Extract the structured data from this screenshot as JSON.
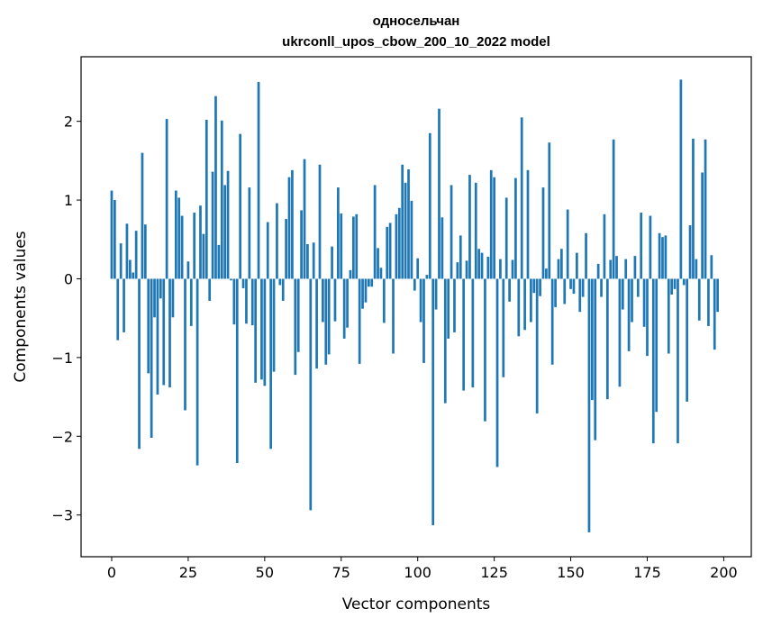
{
  "chart_data": {
    "type": "bar",
    "title": "односельчан",
    "subtitle": "ukrconll_upos_cbow_200_10_2022 model",
    "xlabel": "Vector components",
    "ylabel": "Components values",
    "xlim": [
      -10,
      209
    ],
    "ylim": [
      -3.53,
      2.82
    ],
    "xticks": [
      0,
      25,
      50,
      75,
      100,
      125,
      150,
      175,
      200
    ],
    "yticks": [
      2,
      1,
      0,
      -1,
      -2,
      -3
    ],
    "ytick_labels": [
      "2",
      "1",
      "0",
      "−1",
      "−2",
      "−3"
    ],
    "bar_color": "#1f77b4",
    "grid": false,
    "legend": "none",
    "values": [
      1.12,
      1.0,
      -0.78,
      0.45,
      -0.68,
      0.7,
      0.24,
      0.08,
      0.61,
      -2.16,
      1.6,
      0.69,
      -1.2,
      -2.02,
      -0.49,
      -1.47,
      -0.25,
      -1.35,
      2.03,
      -1.38,
      -0.49,
      1.12,
      1.03,
      0.8,
      -1.67,
      0.22,
      -0.6,
      0.84,
      -2.37,
      0.93,
      0.57,
      2.02,
      -0.28,
      1.36,
      2.32,
      0.43,
      2.01,
      1.19,
      1.37,
      -0.02,
      -0.58,
      -2.34,
      1.84,
      -0.12,
      -0.57,
      1.16,
      -0.59,
      -1.32,
      2.5,
      -1.28,
      -1.36,
      0.72,
      -2.16,
      -1.18,
      0.96,
      -0.08,
      -0.28,
      0.76,
      1.29,
      1.38,
      -1.22,
      -0.93,
      0.87,
      1.52,
      0.44,
      -2.94,
      0.46,
      -1.14,
      1.45,
      -0.55,
      -1.09,
      -0.96,
      0.41,
      -0.54,
      1.16,
      0.83,
      -0.76,
      -0.62,
      0.11,
      0.79,
      0.82,
      -1.08,
      -0.38,
      -0.3,
      -0.1,
      -0.1,
      1.19,
      0.39,
      0.14,
      -0.56,
      0.66,
      0.71,
      -0.95,
      0.82,
      0.9,
      1.45,
      1.22,
      1.39,
      0.99,
      -0.15,
      0.26,
      -0.55,
      -1.07,
      0.05,
      1.85,
      -3.13,
      -0.39,
      2.16,
      0.78,
      -1.58,
      -0.76,
      1.19,
      -0.68,
      0.21,
      0.55,
      -1.42,
      0.23,
      1.32,
      -1.38,
      1.22,
      0.38,
      0.33,
      -1.81,
      0.28,
      1.38,
      1.29,
      -2.39,
      0.25,
      -1.25,
      1.03,
      -0.29,
      0.24,
      1.28,
      -0.73,
      2.05,
      -0.65,
      1.38,
      -0.55,
      -0.18,
      -1.71,
      -0.22,
      1.16,
      0.13,
      1.73,
      -1.09,
      -0.36,
      0.25,
      0.38,
      -0.32,
      0.88,
      -0.13,
      -0.19,
      0.33,
      -0.42,
      -0.23,
      0.58,
      -3.22,
      -1.54,
      -2.05,
      0.19,
      -0.23,
      0.82,
      -1.53,
      0.24,
      1.77,
      0.29,
      -1.37,
      -0.39,
      0.25,
      -0.92,
      -0.55,
      0.29,
      -0.23,
      0.84,
      -0.61,
      -0.98,
      0.8,
      -2.09,
      -1.69,
      0.58,
      0.53,
      0.55,
      -0.95,
      -0.2,
      -0.13,
      -2.09,
      2.53,
      -0.08,
      -1.56,
      0.68,
      1.78,
      0.25,
      -0.53,
      1.35,
      1.77,
      -0.6,
      0.3,
      -0.9,
      -0.42
    ]
  }
}
